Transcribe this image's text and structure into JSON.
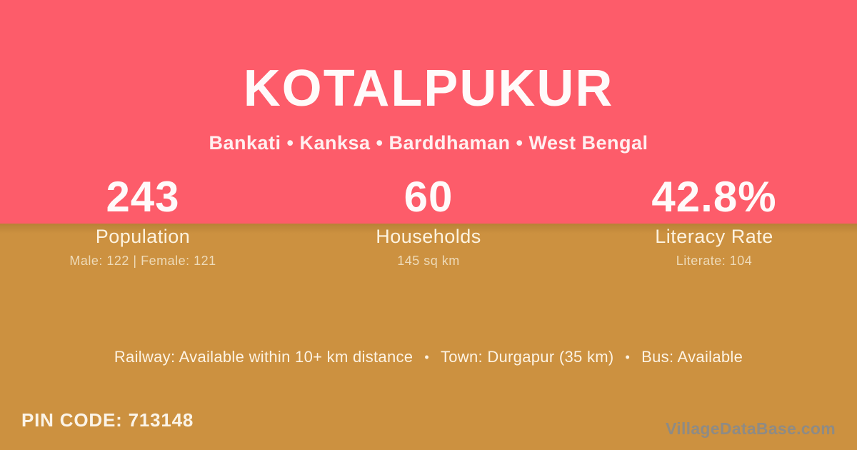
{
  "header": {
    "title": "KOTALPUKUR",
    "subtitle": "Bankati • Kanksa • Barddhaman • West Bengal"
  },
  "stats": [
    {
      "value": "243",
      "label": "Population",
      "detail": "Male: 122 | Female: 121"
    },
    {
      "value": "60",
      "label": "Households",
      "detail": "145 sq km"
    },
    {
      "value": "42.8%",
      "label": "Literacy Rate",
      "detail": "Literate: 104"
    }
  ],
  "transport": {
    "railway": "Railway: Available within 10+ km distance",
    "town": "Town: Durgapur (35 km)",
    "bus": "Bus: Available",
    "separator": "•"
  },
  "footer": {
    "pin_code": "PIN CODE: 713148",
    "watermark": "VillageDataBase.com"
  },
  "colors": {
    "top_bg": "#fd5c6a",
    "bottom_bg": "#cc9140",
    "watermark_color": "#8e8b85"
  }
}
